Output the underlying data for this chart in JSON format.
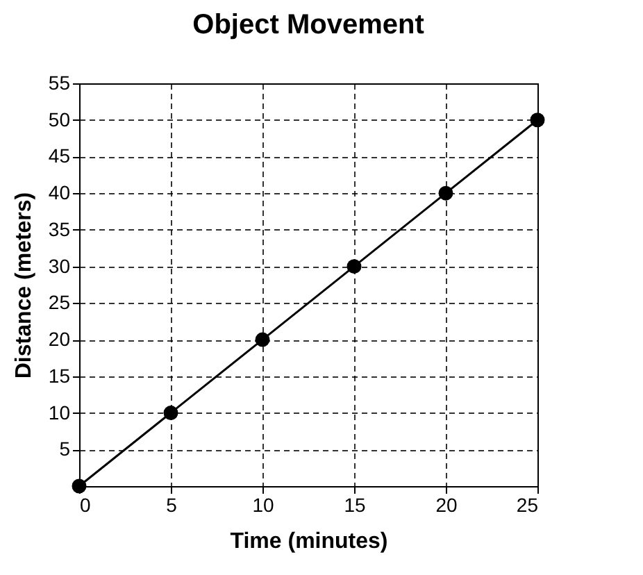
{
  "chart_data": {
    "type": "line",
    "title": "Object Movement",
    "xlabel": "Time (minutes)",
    "ylabel": "Distance (meters)",
    "x": [
      0,
      5,
      10,
      15,
      20,
      25
    ],
    "series": [
      {
        "color": "#000000",
        "values": [
          0,
          10,
          20,
          30,
          40,
          50
        ]
      }
    ],
    "xlim": [
      0,
      25
    ],
    "ylim": [
      0,
      55
    ],
    "xticks": [
      0,
      5,
      10,
      15,
      20,
      25
    ],
    "yticks": [
      5,
      10,
      15,
      20,
      25,
      30,
      35,
      40,
      45,
      50,
      55
    ],
    "grid": true,
    "marker": "circle",
    "line_style": "solid"
  }
}
